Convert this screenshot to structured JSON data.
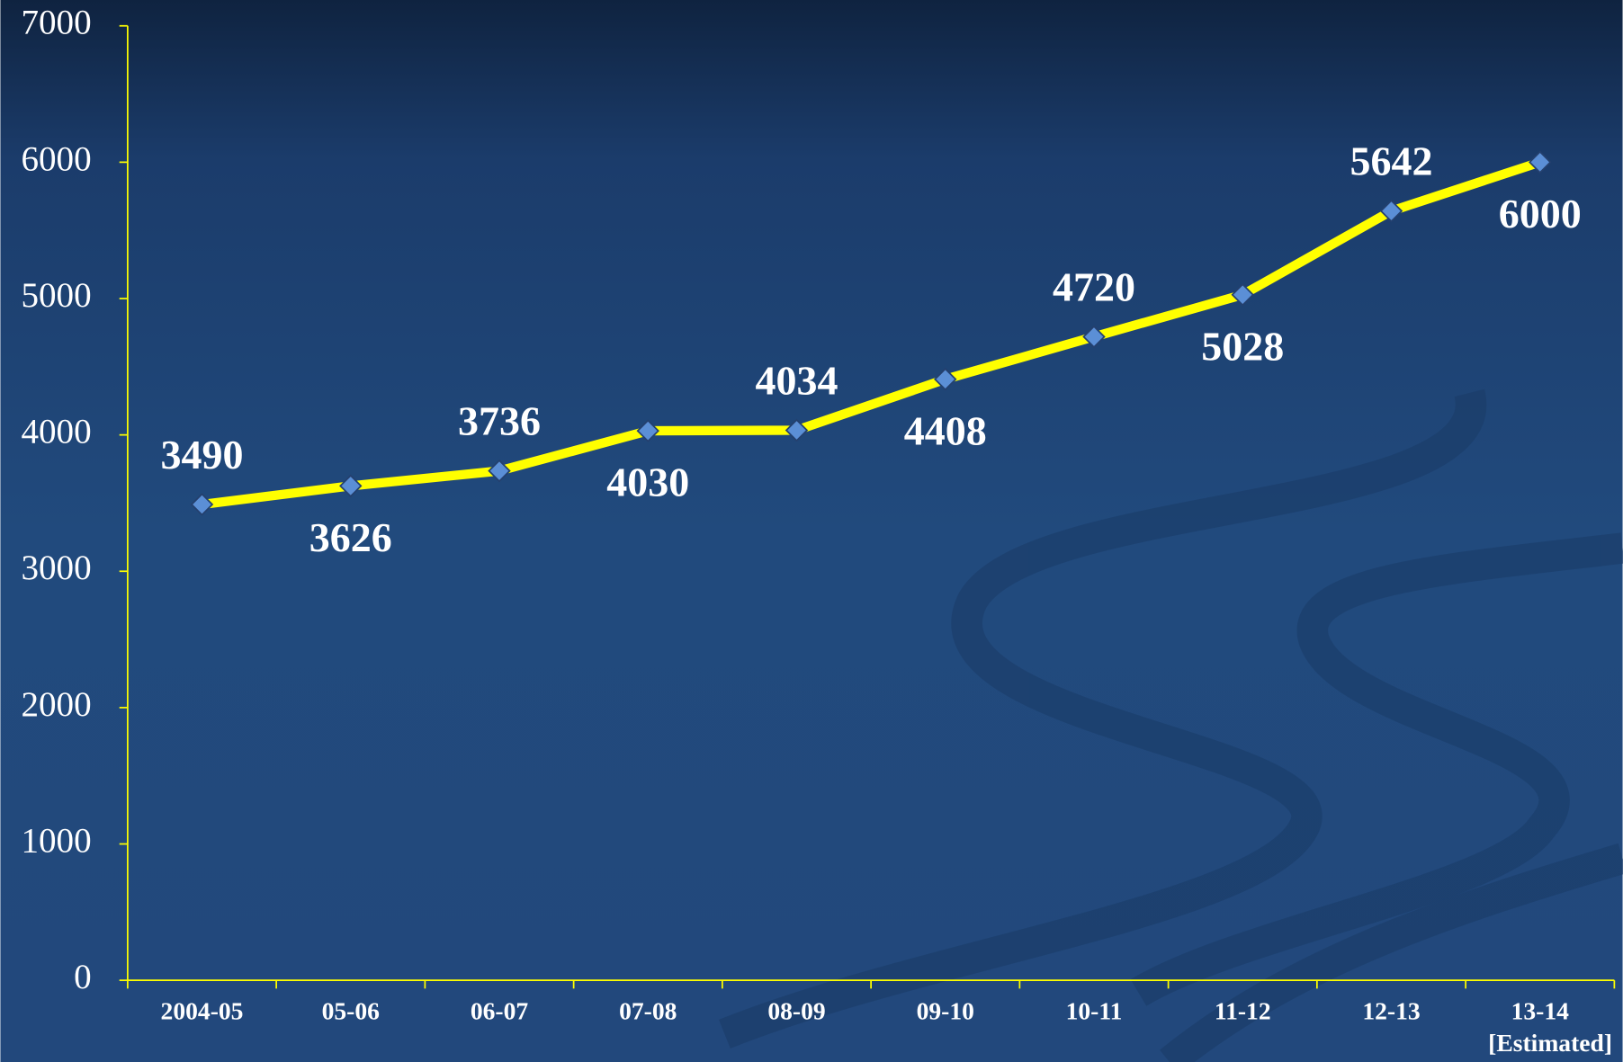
{
  "chart_data": {
    "type": "line",
    "categories": [
      "2004-05",
      "05-06",
      "06-07",
      "07-08",
      "08-09",
      "09-10",
      "10-11",
      "11-12",
      "12-13",
      "13-14"
    ],
    "annotations": [
      "[Estimated]"
    ],
    "series": [
      {
        "color": "#ffff00",
        "marker_color": "#5b8fd6",
        "values": [
          3490,
          3626,
          3736,
          4030,
          4034,
          4408,
          4720,
          5028,
          5642,
          6000
        ]
      }
    ],
    "ylim": [
      0,
      7000
    ],
    "yticks": [
      0,
      1000,
      2000,
      3000,
      4000,
      5000,
      6000,
      7000
    ],
    "axis_color": "#ffff00"
  }
}
